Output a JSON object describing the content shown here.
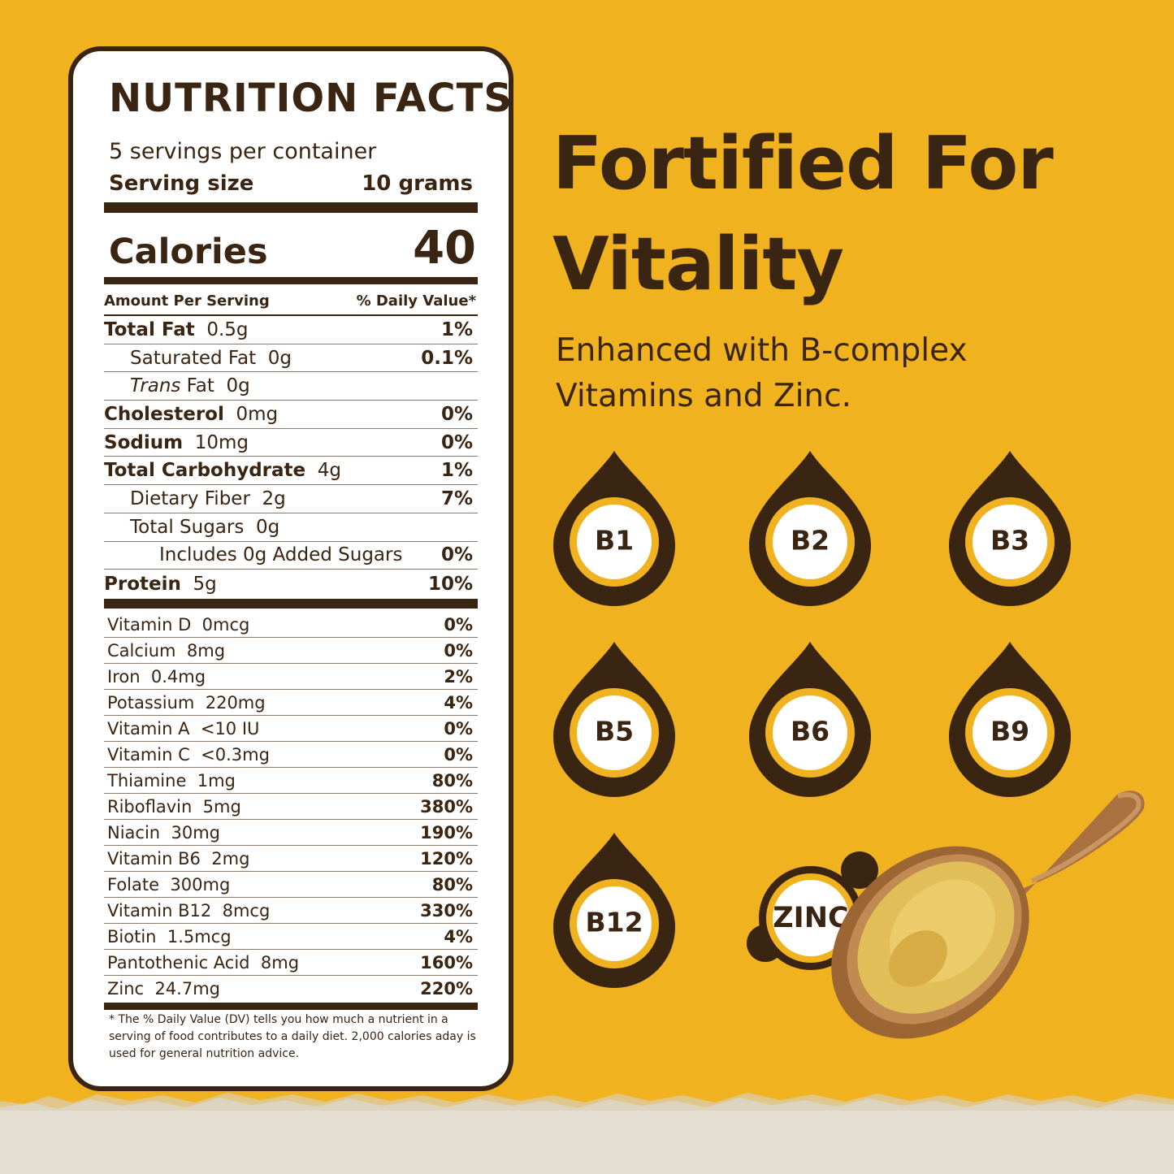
{
  "nutrition": {
    "title": "NUTRITION  FACTS",
    "servings": "5 servings per container",
    "serving_size_label": "Serving size",
    "serving_size_value": "10 grams",
    "calories_label": "Calories",
    "calories_value": "40",
    "amount_per_serving": "Amount Per Serving",
    "daily_value_header": "% Daily Value*",
    "macros": [
      {
        "name": "Total Fat",
        "amount": "0.5g",
        "dv": "1%"
      },
      {
        "name": "Saturated Fat",
        "amount": "0g",
        "dv": "0.1%"
      },
      {
        "name": "Trans",
        "name_rest": " Fat",
        "amount": "0g",
        "dv": ""
      },
      {
        "name": "Cholesterol",
        "amount": "0mg",
        "dv": "0%"
      },
      {
        "name": "Sodium",
        "amount": "10mg",
        "dv": "0%"
      },
      {
        "name": "Total Carbohydrate",
        "amount": "4g",
        "dv": "1%"
      },
      {
        "name": "Dietary Fiber",
        "amount": "2g",
        "dv": "7%"
      },
      {
        "name": "Total Sugars",
        "amount": "0g",
        "dv": ""
      },
      {
        "name": "Includes 0g Added Sugars",
        "amount": "",
        "dv": "0%"
      },
      {
        "name": "Protein",
        "amount": "5g",
        "dv": "10%"
      }
    ],
    "micros": [
      {
        "name": "Vitamin D",
        "amount": "0mcg",
        "dv": "0%"
      },
      {
        "name": "Calcium",
        "amount": "8mg",
        "dv": "0%"
      },
      {
        "name": "Iron",
        "amount": "0.4mg",
        "dv": "2%"
      },
      {
        "name": "Potassium",
        "amount": "220mg",
        "dv": "4%"
      },
      {
        "name": "Vitamin A",
        "amount": "<10 IU",
        "dv": "0%"
      },
      {
        "name": "Vitamin C",
        "amount": "<0.3mg",
        "dv": "0%"
      },
      {
        "name": "Thiamine",
        "amount": "1mg",
        "dv": "80%"
      },
      {
        "name": "Riboflavin",
        "amount": "5mg",
        "dv": "380%"
      },
      {
        "name": "Niacin",
        "amount": "30mg",
        "dv": "190%"
      },
      {
        "name": "Vitamin B6",
        "amount": "2mg",
        "dv": "120%"
      },
      {
        "name": "Folate",
        "amount": "300mg",
        "dv": "80%"
      },
      {
        "name": "Vitamin B12",
        "amount": "8mcg",
        "dv": "330%"
      },
      {
        "name": "Biotin",
        "amount": "1.5mcg",
        "dv": "4%"
      },
      {
        "name": "Pantothenic Acid",
        "amount": "8mg",
        "dv": "160%"
      },
      {
        "name": "Zinc",
        "amount": "24.7mg",
        "dv": "220%"
      }
    ],
    "footnote": "* The % Daily Value (DV) tells you how much a nutrient in a serving of food contributes to a daily diet. 2,000 calories aday is used for general nutrition advice."
  },
  "headline": {
    "line1": "Fortified For",
    "line2": "Vitality"
  },
  "subheadline": {
    "line1": "Enhanced with B-complex",
    "line2": "Vitamins and Zinc."
  },
  "badges": [
    "B1",
    "B2",
    "B3",
    "B5",
    "B6",
    "B9",
    "B12"
  ],
  "zinc_badge": "ZINC",
  "colors": {
    "background": "#f0b31f",
    "brown": "#3a2412",
    "white": "#ffffff"
  },
  "icons": [
    "vitamin-drop-icon",
    "zinc-molecule-icon",
    "wooden-spoon-powder-image"
  ]
}
